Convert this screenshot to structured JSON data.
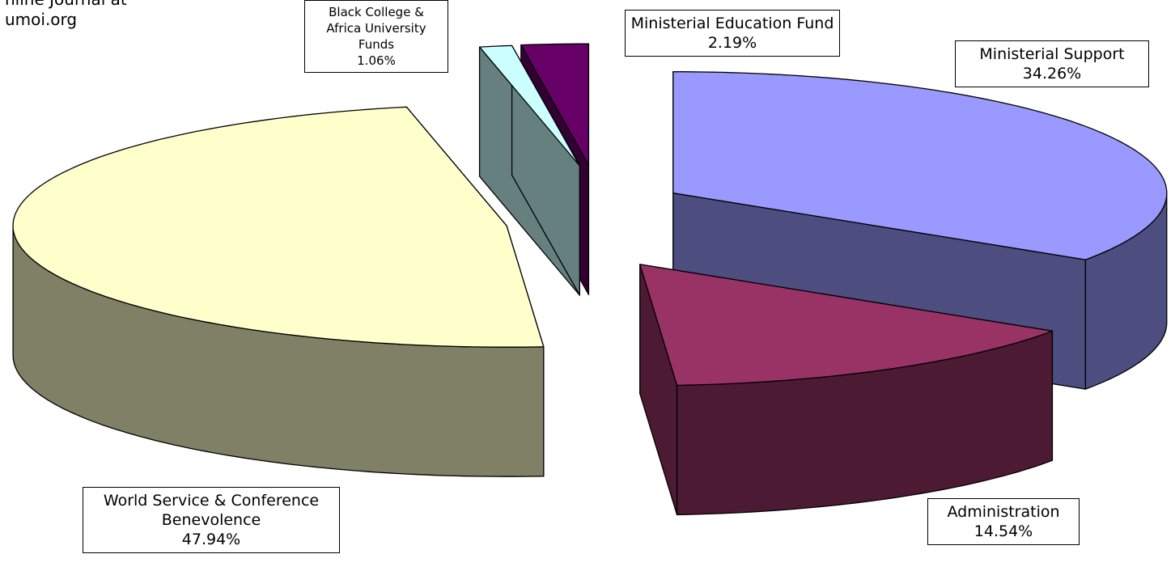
{
  "chart_data": {
    "type": "pie3d",
    "annotations": [
      "nline Journal at",
      "umoi.org"
    ],
    "categories": [
      "Ministerial Support",
      "Administration",
      "World Service & Conference Benevolence",
      "Black College & Africa University Funds",
      "Ministerial Education Fund"
    ],
    "values": [
      34.26,
      14.54,
      47.94,
      1.06,
      2.19
    ],
    "value_labels": [
      "34.26%",
      "14.54%",
      "47.94%",
      "1.06%",
      "2.19%"
    ],
    "colors": [
      "#9999ff",
      "#993366",
      "#ffffcc",
      "#ccffff",
      "#660066"
    ]
  }
}
